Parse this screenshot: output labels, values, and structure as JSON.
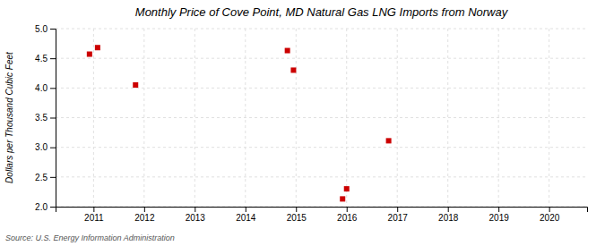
{
  "chart_data": {
    "type": "scatter",
    "title": "Monthly Price of Cove Point, MD Natural Gas LNG Imports from Norway",
    "y_label": "Dollars per Thousand Cubic Feet",
    "annotations": [
      "Source: U.S. Energy Information Administration"
    ],
    "x": [
      2010.92,
      2011.08,
      2011.83,
      2014.83,
      2014.95,
      2015.92,
      2016.0,
      2016.83
    ],
    "values": [
      4.57,
      4.68,
      4.05,
      4.63,
      4.3,
      2.13,
      2.3,
      3.11
    ],
    "color": "#cc0000",
    "marker": "square",
    "xlim": [
      2010.25,
      2020.75
    ],
    "ylim": [
      2.0,
      5.0
    ],
    "xticks": [
      2011,
      2012,
      2013,
      2014,
      2015,
      2016,
      2017,
      2018,
      2019,
      2020
    ],
    "yticks": [
      {
        "value": 2.0,
        "label": "2.0"
      },
      2.5,
      {
        "value": 3.0,
        "label": "3.0"
      },
      3.5,
      {
        "value": 4.0,
        "label": "4.0"
      },
      4.5,
      {
        "value": 5.0,
        "label": "5.0"
      }
    ],
    "grid": true
  }
}
